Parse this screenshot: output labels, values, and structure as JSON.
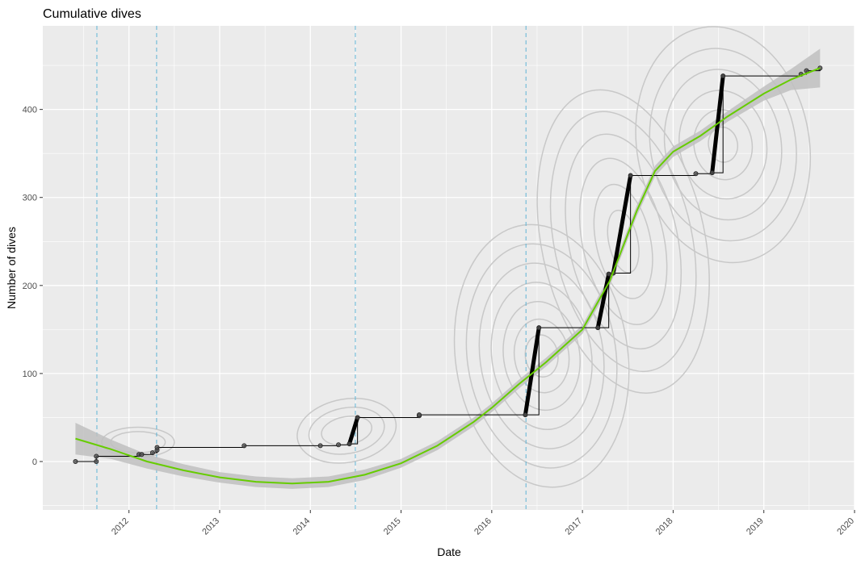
{
  "chart_data": {
    "type": "line",
    "title": "Cumulative dives",
    "xlabel": "Date",
    "ylabel": "Number of dives",
    "x_unit": "year",
    "xlim": [
      2011.05,
      2020.0
    ],
    "ylim": [
      -55,
      495
    ],
    "x_ticks": [
      "2012",
      "2013",
      "2014",
      "2015",
      "2016",
      "2017",
      "2018",
      "2019",
      "2020"
    ],
    "y_ticks": [
      0,
      100,
      200,
      300,
      400
    ],
    "grid": true,
    "background": "#ebebeb",
    "colors": {
      "step_line": "#000000",
      "points": "#000000",
      "smooth_line": "#66cc00",
      "smooth_band": "#bfbfbf",
      "vlines": "#5fb4d6",
      "contours": "#c8c8c8"
    },
    "vlines": [
      "2011-08-24",
      "2012-04-21",
      "2014-06-30",
      "2016-05-17"
    ],
    "cumulative_steps": [
      [
        2011.41,
        0
      ],
      [
        2011.64,
        0
      ],
      [
        2011.64,
        6
      ],
      [
        2012.11,
        8
      ],
      [
        2012.14,
        8
      ],
      [
        2012.26,
        10
      ],
      [
        2012.31,
        13
      ],
      [
        2012.31,
        16
      ],
      [
        2013.27,
        18
      ],
      [
        2014.11,
        18
      ],
      [
        2014.31,
        19
      ],
      [
        2014.43,
        20
      ],
      [
        2014.52,
        50
      ],
      [
        2015.2,
        52
      ],
      [
        2015.2,
        53
      ],
      [
        2016.37,
        53
      ],
      [
        2016.52,
        152
      ],
      [
        2017.17,
        152
      ],
      [
        2017.29,
        213
      ],
      [
        2017.34,
        214
      ],
      [
        2017.53,
        325
      ],
      [
        2018.25,
        327
      ],
      [
        2018.43,
        328
      ],
      [
        2018.55,
        438
      ],
      [
        2019.41,
        440
      ],
      [
        2019.47,
        444
      ],
      [
        2019.62,
        447
      ]
    ],
    "smooth_series": {
      "x": [
        2011.41,
        2011.8,
        2012.2,
        2012.6,
        2013.0,
        2013.4,
        2013.8,
        2014.2,
        2014.6,
        2015.0,
        2015.4,
        2015.8,
        2016.0,
        2016.3,
        2016.6,
        2017.0,
        2017.3,
        2017.6,
        2017.8,
        2018.0,
        2018.3,
        2018.6,
        2019.0,
        2019.3,
        2019.62
      ],
      "y": [
        26,
        14,
        0,
        -10,
        -18,
        -23,
        -25,
        -23,
        -15,
        -2,
        18,
        45,
        61,
        88,
        113,
        150,
        205,
        285,
        330,
        352,
        370,
        392,
        418,
        434,
        447
      ],
      "band_halfwidth": [
        18,
        11,
        8,
        7,
        6,
        6,
        6,
        6,
        6,
        5,
        5,
        5,
        5,
        5,
        5,
        5,
        6,
        6,
        6,
        6,
        6,
        6,
        8,
        12,
        22
      ]
    }
  }
}
